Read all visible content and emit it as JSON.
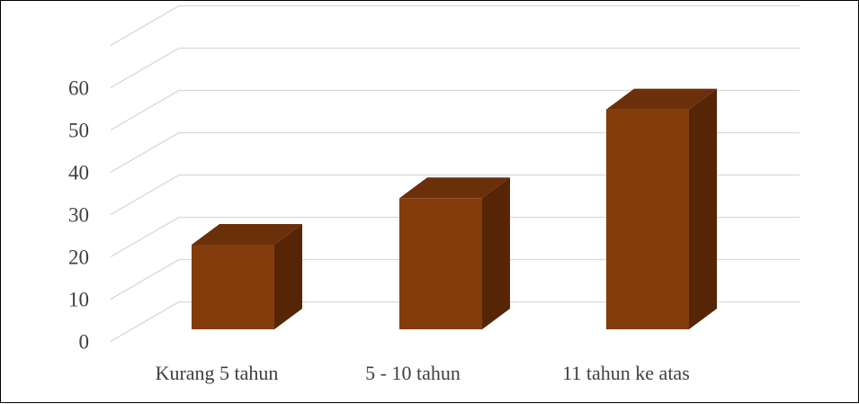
{
  "chart_data": {
    "type": "bar",
    "style": "3d-column",
    "categories": [
      "Kurang 5 tahun",
      "5 - 10 tahun",
      "11 tahun ke atas"
    ],
    "values": [
      20,
      31,
      52
    ],
    "title": "",
    "xlabel": "",
    "ylabel": "",
    "ylim": [
      0,
      70
    ],
    "yticks": [
      0,
      10,
      20,
      30,
      40,
      50,
      60
    ],
    "grid": true,
    "legend": "none",
    "colors": {
      "bar_front": "#843C0C",
      "bar_top": "#6B300A",
      "bar_side": "#552506",
      "grid": "#D9D9D9",
      "text": "#404040"
    }
  }
}
